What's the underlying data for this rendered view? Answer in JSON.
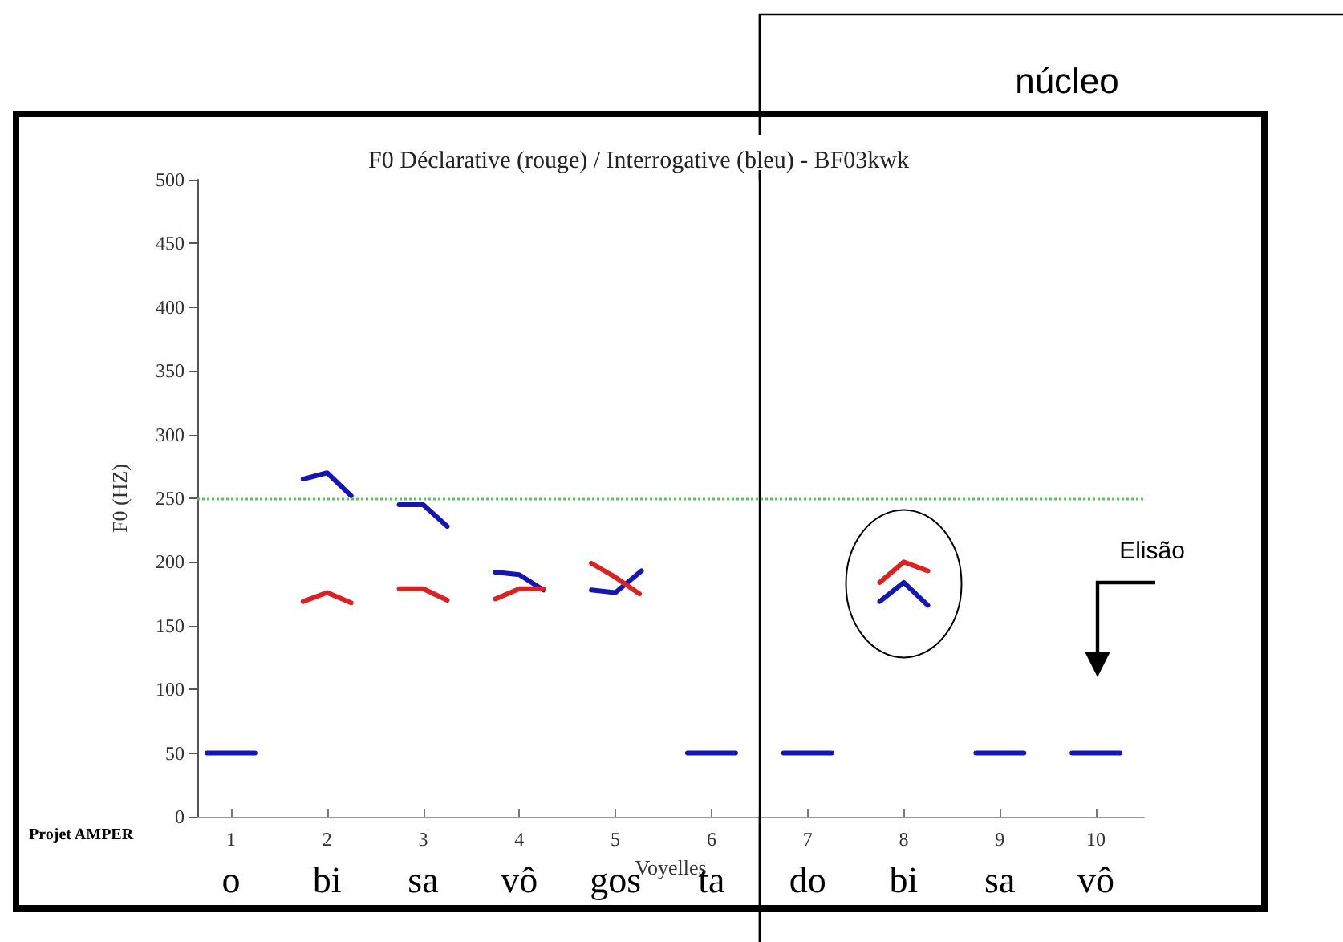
{
  "chart_data": {
    "type": "line",
    "title": "F0 Déclarative (rouge) / Interrogative (bleu) - BF03kwk",
    "xlabel": "Voyelles",
    "ylabel": "F0 (HZ)",
    "xlim": [
      0.65,
      10.5
    ],
    "xticks": [
      1,
      2,
      3,
      4,
      5,
      6,
      7,
      8,
      9,
      10
    ],
    "ylim": [
      0,
      500
    ],
    "yticks": [
      0,
      50,
      100,
      150,
      200,
      250,
      300,
      350,
      400,
      450,
      500
    ],
    "grid": false,
    "marker": "none",
    "line_style": "solid",
    "series": [
      {
        "color": "#1515b5",
        "x": [
          0.75,
          1,
          1.25,
          1.5,
          1.75,
          2,
          2.25,
          2.5,
          2.75,
          3,
          3.25,
          3.5,
          3.75,
          4,
          4.25,
          4.5,
          4.75,
          5,
          5.27,
          5.5,
          5.75,
          6,
          6.25,
          6.5,
          6.75,
          7,
          7.25,
          7.5,
          7.75,
          8,
          8.25,
          8.5,
          8.75,
          9,
          9.25,
          9.5,
          9.75,
          10,
          10.25
        ],
        "values": [
          50,
          50,
          50,
          null,
          265,
          270,
          252,
          null,
          245,
          245,
          228,
          null,
          192,
          190,
          178,
          null,
          178,
          176,
          193,
          null,
          50,
          50,
          50,
          null,
          50,
          50,
          50,
          null,
          169,
          184,
          166,
          null,
          50,
          50,
          50,
          null,
          50,
          50,
          50
        ]
      },
      {
        "color": "#dd2020",
        "x": [
          1.75,
          2,
          2.25,
          2.5,
          2.75,
          3,
          3.25,
          3.5,
          3.75,
          4,
          4.25,
          4.5,
          4.75,
          5,
          5.25,
          5.5,
          7.75,
          8,
          8.25
        ],
        "values": [
          169,
          176,
          168,
          null,
          179,
          179,
          170,
          null,
          171,
          179,
          179,
          null,
          199,
          188,
          175,
          null,
          184,
          200,
          193
        ]
      }
    ],
    "ref_lines": [
      {
        "axis": "y",
        "value": 250,
        "color": "#66bb66",
        "line_style": "dotted"
      },
      {
        "axis": "x",
        "value": 6.5,
        "label": "núcleo",
        "color": "#000000",
        "line_style": "solid"
      }
    ],
    "annotations": [
      "o",
      "bi",
      "sa",
      "vô",
      "gos",
      "ta",
      "do",
      "bi",
      "sa",
      "vô",
      "Elisão",
      "Projet AMPER"
    ]
  }
}
